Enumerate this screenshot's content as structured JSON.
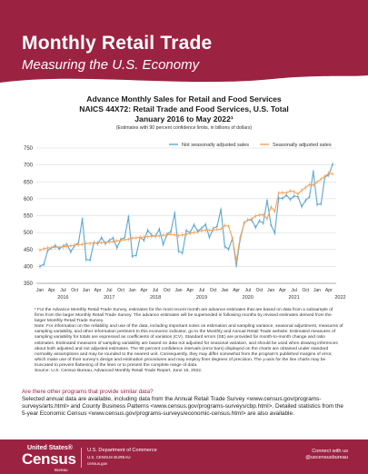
{
  "header": {
    "title": "Monthly Retail Trade",
    "subtitle": "Measuring the U.S. Economy"
  },
  "chart_data": {
    "type": "line",
    "title_line1": "Advance Monthly Sales for Retail and Food Services",
    "title_line2": "NAICS 44X72: Retail Trade and Food Services, U.S. Total",
    "title_line3": "January 2016 to May 2022¹",
    "subtitle": "(Estimates with 90 percent confidence limits, in billions of dollars)",
    "ylim": [
      350,
      750
    ],
    "yticks": [
      "750",
      "700",
      "650",
      "600",
      "550",
      "500",
      "450",
      "400",
      "350"
    ],
    "month_ticks": [
      "Jan",
      "Apr",
      "Jul",
      "Oct"
    ],
    "last_month_tick": "Jan Apr",
    "years": [
      "2016",
      "2017",
      "2018",
      "2019",
      "2020",
      "2021",
      "2022"
    ],
    "legend_position": "top-right",
    "grid": true,
    "series": [
      {
        "name": "Not seasonally adjusted sales",
        "color": "#5aa7d4",
        "values": [
          400,
          406,
          447,
          455,
          462,
          452,
          460,
          465,
          443,
          462,
          470,
          540,
          420,
          419,
          471,
          467,
          485,
          467,
          477,
          484,
          455,
          480,
          485,
          547,
          430,
          433,
          486,
          477,
          507,
          492,
          489,
          510,
          465,
          495,
          503,
          558,
          445,
          440,
          506,
          500,
          523,
          504,
          513,
          524,
          486,
          512,
          518,
          568,
          459,
          451,
          483,
          402,
          480,
          528,
          538,
          537,
          515,
          535,
          528,
          595,
          523,
          499,
          602,
          601,
          611,
          598,
          608,
          606,
          577,
          595,
          606,
          680,
          583,
          585,
          664,
          670,
          702
        ]
      },
      {
        "name": "Seasonally adjusted sales",
        "color": "#f4a259",
        "values": [
          448,
          452,
          455,
          455,
          457,
          457,
          458,
          459,
          461,
          463,
          464,
          465,
          468,
          468,
          469,
          470,
          470,
          471,
          472,
          473,
          476,
          477,
          479,
          480,
          484,
          484,
          486,
          487,
          488,
          489,
          490,
          490,
          492,
          493,
          495,
          493,
          491,
          493,
          495,
          498,
          500,
          502,
          506,
          507,
          507,
          507,
          509,
          510,
          521,
          519,
          482,
          415,
          486,
          527,
          538,
          540,
          549,
          552,
          553,
          541,
          576,
          562,
          617,
          618,
          617,
          623,
          621,
          614,
          625,
          633,
          642,
          640,
          650,
          658,
          666,
          676,
          673
        ]
      }
    ]
  },
  "notes": {
    "paragraph": "¹ For the Advance Monthly Retail Trade Survey, estimates for the most recent month are advance estimates that are based on data from a subsample of firms from the larger Monthly Retail Trade Survey. The advance estimates will be superseded in following months by revised estimates derived from the larger Monthly Retail Trade Survey.",
    "note": "Note: For information on the reliability and use of the data, including important notes on estimation and sampling variance, seasonal adjustment, measures of sampling variability, and other information pertinent to this economic indicator, go to the Monthly and Annual Retail Trade website. Estimated measures of sampling variability for totals are expressed as coefficients of variation (CV). Standard errors (SE) are provided for month-to-month change and ratio estimates. Estimated measures of sampling variability are based on data not adjusted for seasonal variation, and should be used when drawing inferences about both adjusted and not adjusted estimates. The 90 percent confidence intervals (error bars) displayed on the charts are obtained under standard normality assumptions and may be rounded to the nearest unit. Consequently, they may differ somewhat from the program's published margins of error, which make use of their survey's design and estimation procedures and may employ finer degrees of precision. The y-axis for the line charts may be truncated to prevent flattening of the lines or to present the complete range of data.",
    "source": "Source: U.S. Census Bureau, Advanced Monthly Retail Trade Report, June 15, 2022."
  },
  "other_programs": {
    "question": "Are there other programs that provide similar data?",
    "answer": "Selected annual data are available, including data from the Annual Retail Trade Survey <www.census.gov/programs-surveys/arts.html> and County Business Patterns <www.census.gov/programs-surveys/cbp.html>. Detailed statistics from the 5-year Economic Census <www.census.gov/programs-surveys/economic-census.html> are also available."
  },
  "footer": {
    "logo_top": "United States®",
    "logo_main": "Census",
    "logo_bureau": "Bureau",
    "dept_line1": "U.S. Department of Commerce",
    "dept_line2": "U.S. CENSUS BUREAU",
    "dept_line3": "census.gov",
    "connect_line1": "Connect with us",
    "connect_line2": "@uscensusbureau"
  }
}
